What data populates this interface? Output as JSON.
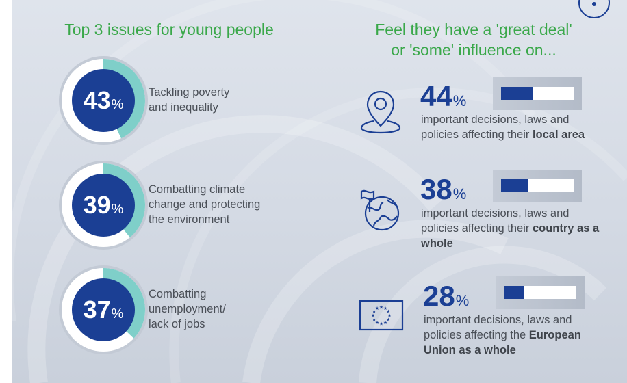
{
  "colors": {
    "heading": "#3aa84a",
    "donut_fill": "#1b3f94",
    "donut_accent": "#7fcfc9",
    "text": "#4a4f57"
  },
  "left": {
    "title": "Top 3 issues for young people",
    "issues": [
      {
        "value": 43,
        "symbol": "%",
        "label": "Tackling poverty\nand inequality"
      },
      {
        "value": 39,
        "symbol": "%",
        "label": "Combatting climate\nchange and protecting\nthe environment"
      },
      {
        "value": 37,
        "symbol": "%",
        "label": "Combatting\nunemployment/\nlack of jobs"
      }
    ]
  },
  "right": {
    "title": "Feel they have a 'great deal'\nor 'some' influence on...",
    "items": [
      {
        "value": 44,
        "symbol": "%",
        "icon": "location-pin-icon",
        "desc_plain": "important decisions, laws and policies affecting their ",
        "desc_bold": "local area"
      },
      {
        "value": 38,
        "symbol": "%",
        "icon": "globe-flag-icon",
        "desc_plain": "important decisions, laws and policies affecting their ",
        "desc_bold": "country as a whole"
      },
      {
        "value": 28,
        "symbol": "%",
        "icon": "eu-flag-icon",
        "desc_plain": "important decisions, laws and policies affecting the ",
        "desc_bold": "European Union as a whole"
      }
    ]
  },
  "chart_data": [
    {
      "type": "bar",
      "title": "Top 3 issues for young people",
      "categories": [
        "Tackling poverty and inequality",
        "Combatting climate change and protecting the environment",
        "Combatting unemployment/ lack of jobs"
      ],
      "values": [
        43,
        39,
        37
      ],
      "unit": "%"
    },
    {
      "type": "bar",
      "title": "Feel they have a 'great deal' or 'some' influence on...",
      "categories": [
        "local area",
        "country as a whole",
        "European Union as a whole"
      ],
      "values": [
        44,
        38,
        28
      ],
      "unit": "%",
      "ylim": [
        0,
        100
      ]
    }
  ]
}
